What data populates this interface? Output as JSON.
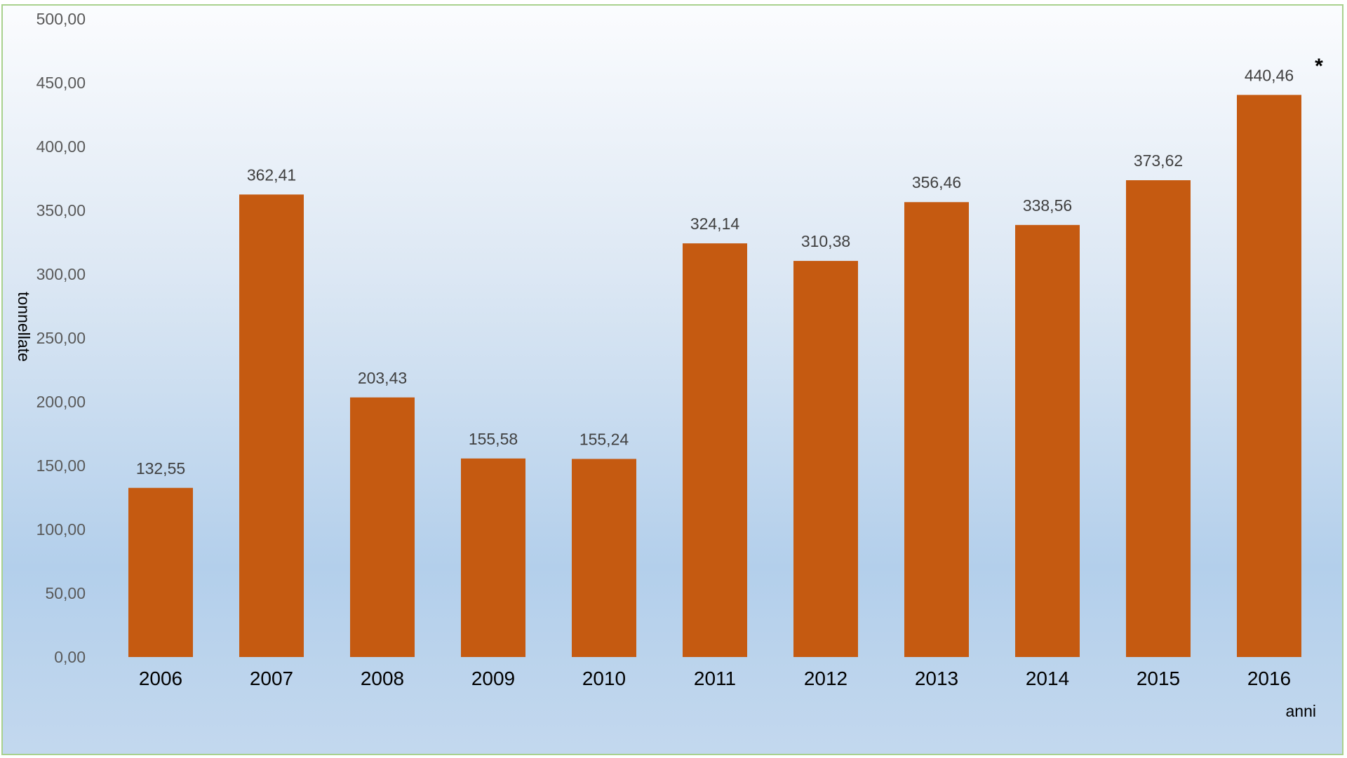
{
  "chart_data": {
    "type": "bar",
    "categories": [
      "2006",
      "2007",
      "2008",
      "2009",
      "2010",
      "2011",
      "2012",
      "2013",
      "2014",
      "2015",
      "2016"
    ],
    "values": [
      132.55,
      362.41,
      203.43,
      155.58,
      155.24,
      324.14,
      310.38,
      356.46,
      338.56,
      373.62,
      440.46
    ],
    "value_labels": [
      "132,55",
      "362,41",
      "203,43",
      "155,58",
      "155,24",
      "324,14",
      "310,38",
      "356,46",
      "338,56",
      "373,62",
      "440,46"
    ],
    "y_ticks": [
      "0,00",
      "50,00",
      "100,00",
      "150,00",
      "200,00",
      "250,00",
      "300,00",
      "350,00",
      "400,00",
      "450,00",
      "500,00"
    ],
    "ylim": [
      0,
      500
    ],
    "ylabel": "tonnellate",
    "xlabel": "anni",
    "annotation": "*",
    "grid": false,
    "bar_color": "#c55a11"
  }
}
